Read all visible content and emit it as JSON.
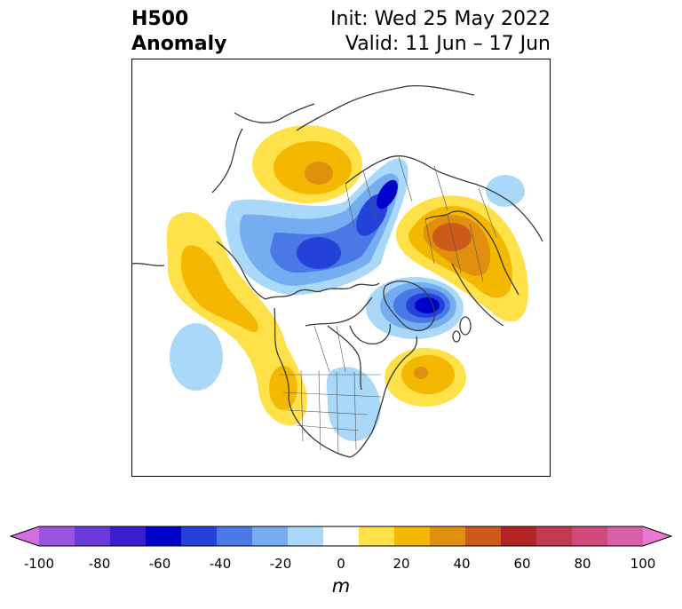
{
  "title": {
    "left_line1": "H500",
    "left_line2": "Anomaly",
    "right_line1": "Init: Wed 25 May 2022",
    "right_line2": "Valid: 11 Jun – 17 Jun"
  },
  "colorbar": {
    "unit": "m",
    "ticks": [
      "-100",
      "-80",
      "-60",
      "-40",
      "-20",
      "0",
      "20",
      "40",
      "60",
      "80",
      "100"
    ],
    "colors": [
      "#d36ee3",
      "#9a55e0",
      "#6b3bd9",
      "#3a1fd1",
      "#0000cc",
      "#2442d9",
      "#4a78e6",
      "#74aef0",
      "#aad8f8",
      "#ffffff",
      "#ffe14a",
      "#f5b800",
      "#e0900e",
      "#cc5a18",
      "#b32424",
      "#c23a50",
      "#cf4a7a",
      "#d95fa8",
      "#e878d4"
    ]
  },
  "map": {
    "anomaly_centers": [
      {
        "sign": "positive",
        "region": "Siberia north of Mongolia"
      },
      {
        "sign": "negative",
        "region": "Arctic Ocean / Kara Sea"
      },
      {
        "sign": "positive",
        "region": "Northern Europe / Scandinavia"
      },
      {
        "sign": "negative",
        "region": "Greenland / Baffin Bay"
      },
      {
        "sign": "positive",
        "region": "North Pacific / Gulf of Alaska"
      },
      {
        "sign": "positive",
        "region": "Western United States"
      },
      {
        "sign": "positive",
        "region": "Western North Atlantic"
      },
      {
        "sign": "negative",
        "region": "Eastern United States"
      },
      {
        "sign": "negative",
        "region": "Central North Pacific"
      }
    ]
  }
}
